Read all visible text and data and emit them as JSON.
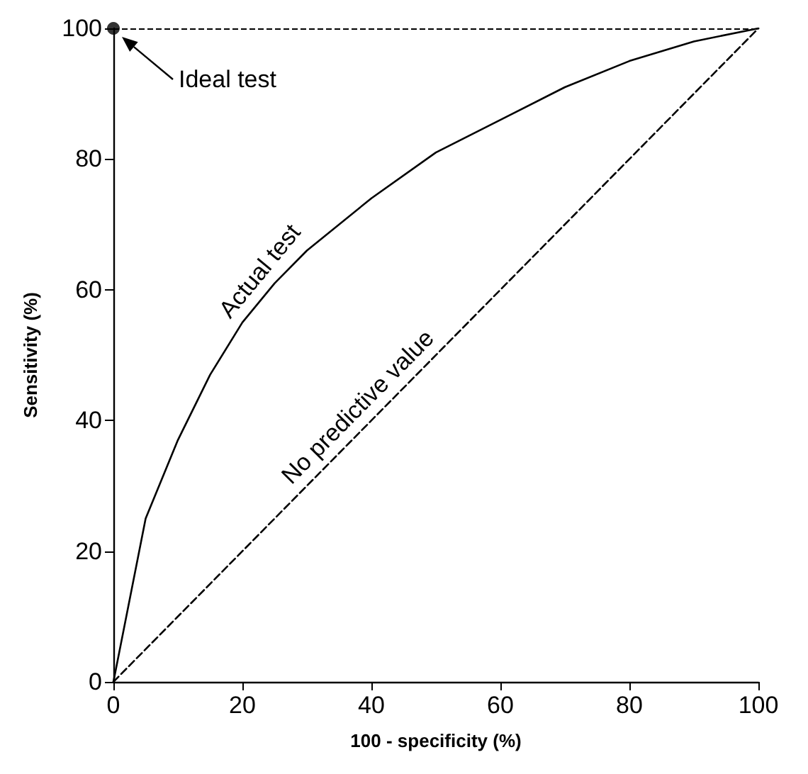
{
  "chart_data": {
    "type": "line",
    "xlabel": "100 - specificity (%)",
    "ylabel": "Sensitivity (%)",
    "xlim": [
      0,
      100
    ],
    "ylim": [
      0,
      100
    ],
    "xticks": [
      0,
      20,
      40,
      60,
      80,
      100
    ],
    "yticks": [
      0,
      20,
      40,
      60,
      80,
      100
    ],
    "grid": false,
    "legend": false,
    "marker": "none",
    "series": [
      {
        "name": "Actual test",
        "color": "#000000",
        "line_style": "solid",
        "x": [
          0,
          5,
          10,
          15,
          20,
          25,
          30,
          40,
          50,
          60,
          70,
          80,
          90,
          100
        ],
        "values": [
          0,
          25,
          37,
          47,
          55,
          61,
          66,
          74,
          81,
          86,
          91,
          95,
          98,
          100
        ]
      },
      {
        "name": "No predictive value",
        "color": "#000000",
        "line_style": "dashed",
        "x": [
          0,
          100
        ],
        "values": [
          0,
          100
        ]
      },
      {
        "type": "scatter",
        "color": "#000000",
        "marker": "circle",
        "x": [
          0
        ],
        "values": [
          100
        ]
      }
    ],
    "ref_lines": [
      {
        "axis": "y",
        "value": 100,
        "line_style": "dashed",
        "color": "#000000"
      }
    ],
    "annotations": [
      "Ideal test"
    ]
  }
}
